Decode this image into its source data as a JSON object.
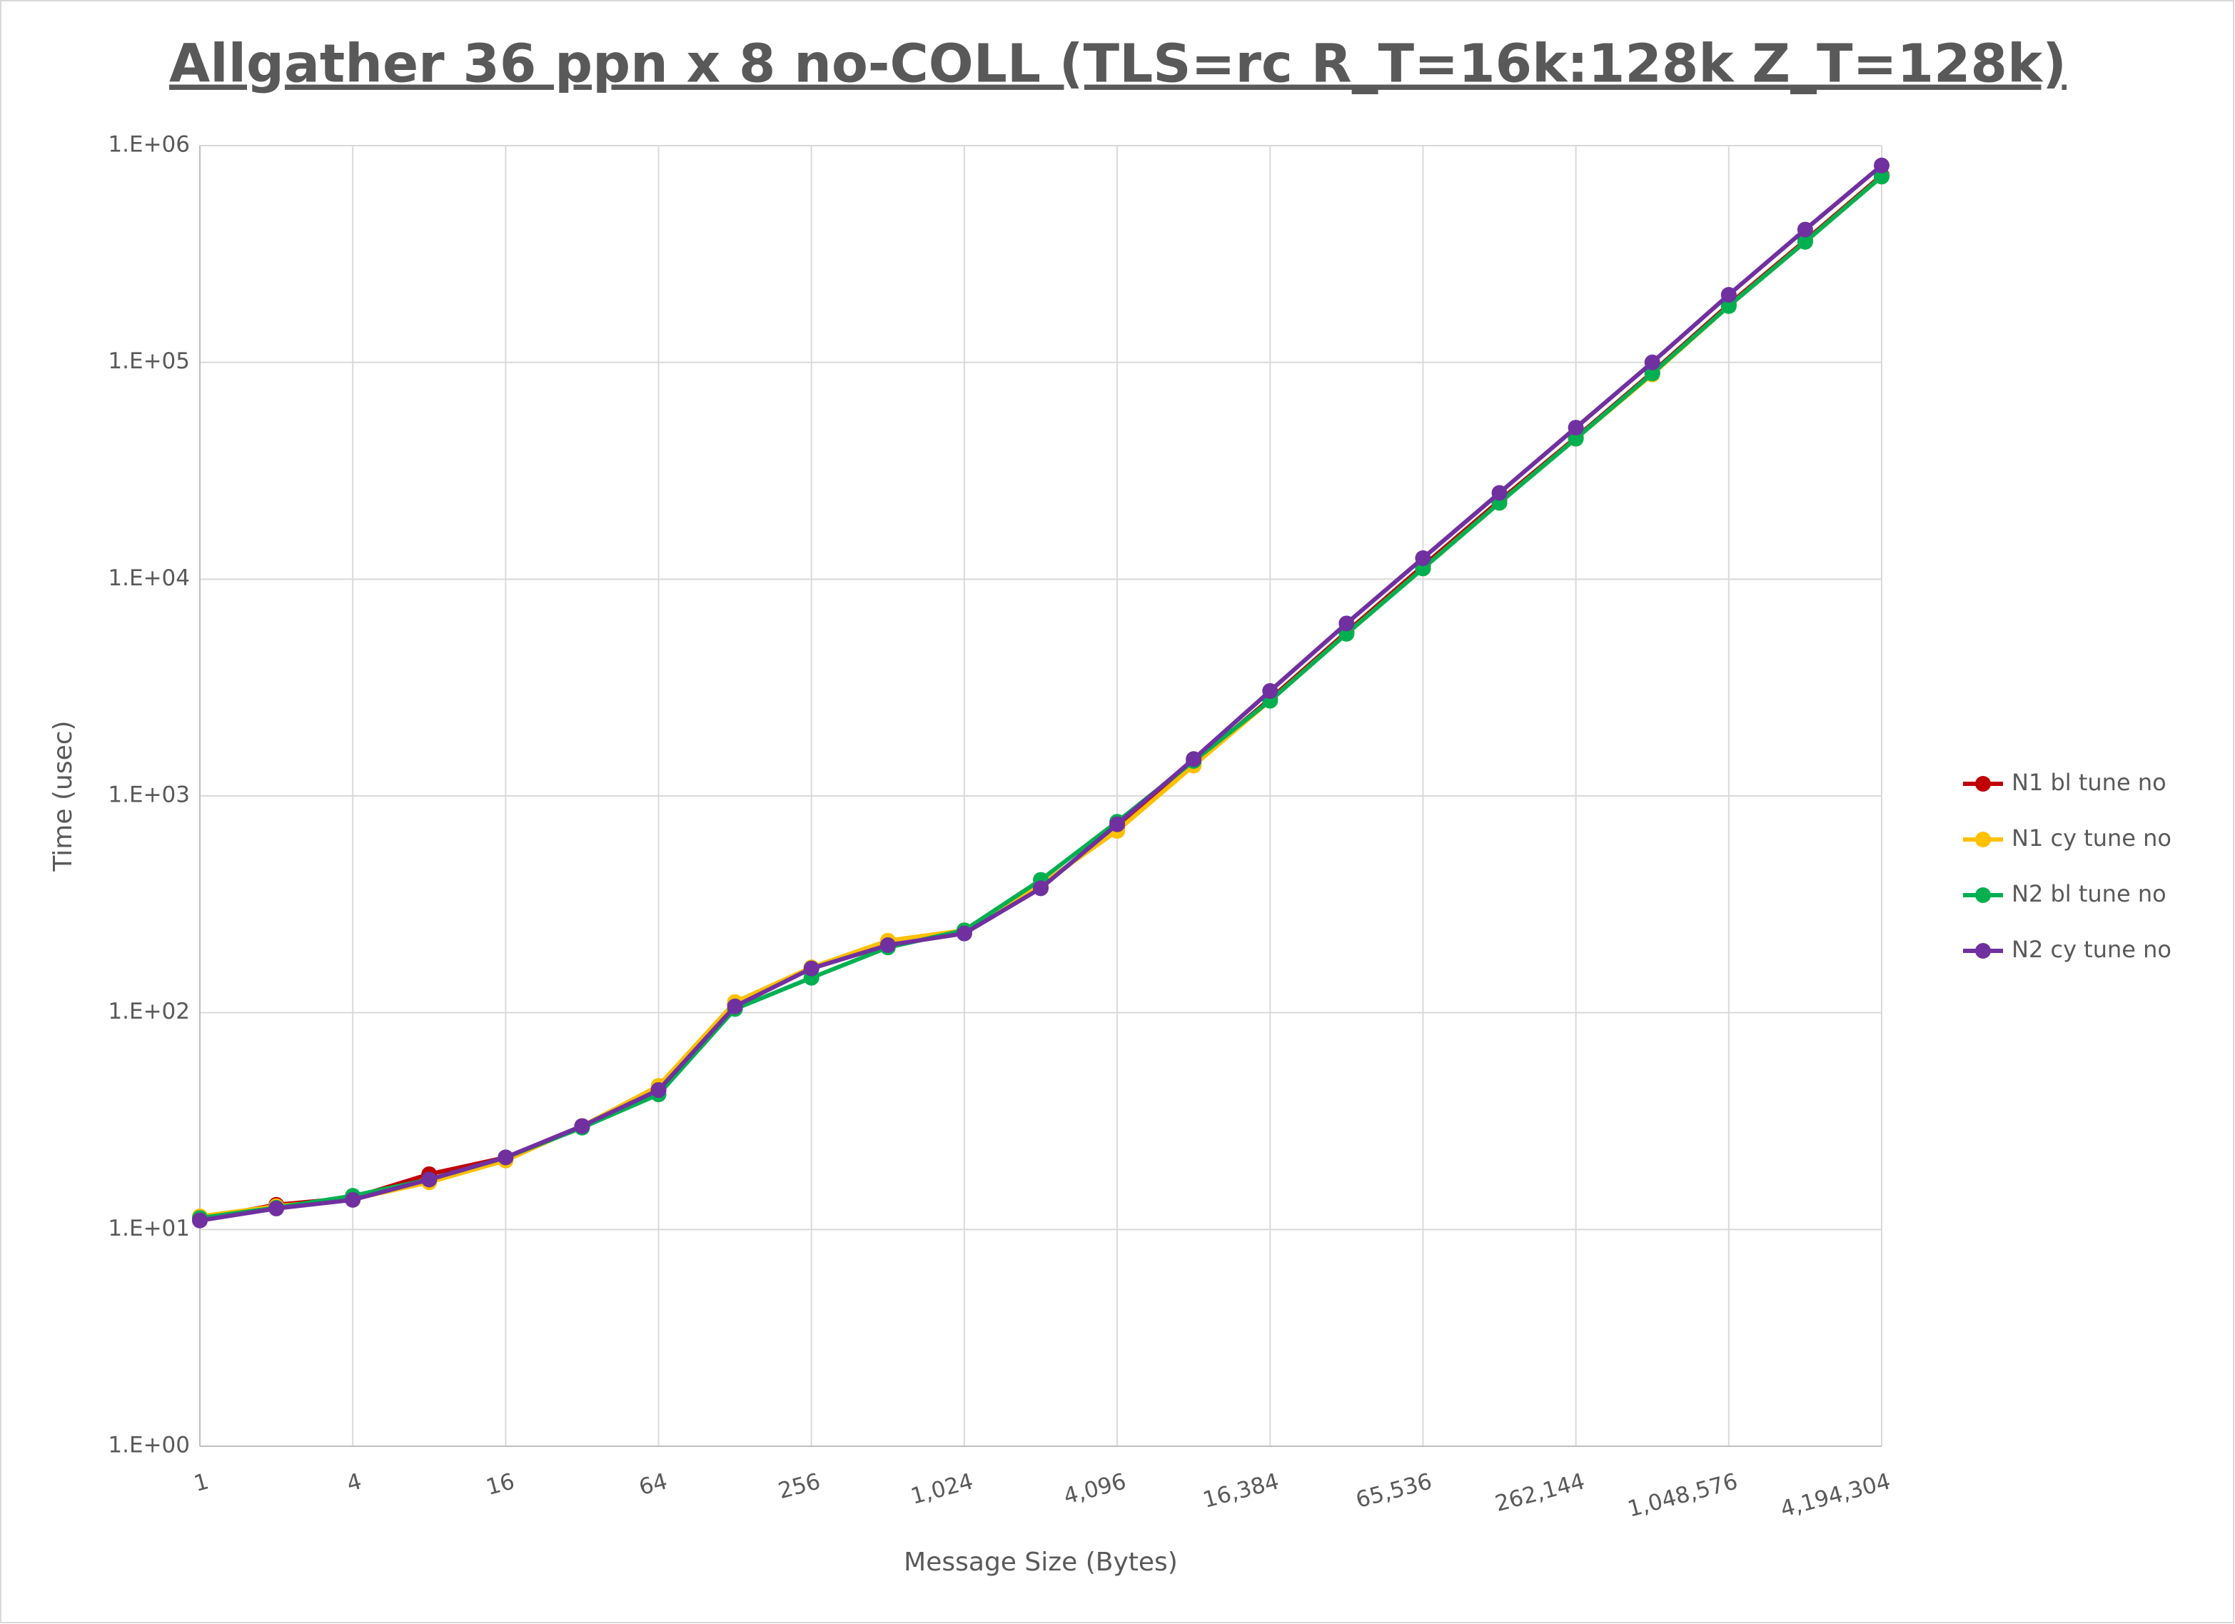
{
  "chart_data": {
    "type": "line",
    "title": "Allgather 36 ppn x 8 no-COLL (TLS=rc R_T=16k:128k Z_T=128k)",
    "x_label": "Message Size (Bytes)",
    "y_label": "Time (usec)",
    "x": [
      1,
      2,
      4,
      8,
      16,
      32,
      64,
      128,
      256,
      512,
      1024,
      2048,
      4096,
      8192,
      16384,
      32768,
      65536,
      131072,
      262144,
      524288,
      1048576,
      2097152,
      4194304
    ],
    "xlog": true,
    "ylog": true,
    "grid": true,
    "legend": "right",
    "xlim": [
      1,
      4194304
    ],
    "xticks": [
      1,
      4,
      16,
      64,
      256,
      {
        "value": 1024,
        "label": "1,024"
      },
      {
        "value": 4096,
        "label": "4,096"
      },
      {
        "value": 16384,
        "label": "16,384"
      },
      {
        "value": 65536,
        "label": "65,536"
      },
      {
        "value": 262144,
        "label": "262,144"
      },
      {
        "value": 1048576,
        "label": "1,048,576"
      },
      {
        "value": 4194304,
        "label": "4,194,304"
      }
    ],
    "ylim": [
      1,
      1000000
    ],
    "yticks": [
      {
        "value": 1,
        "label": "1.E+00"
      },
      {
        "value": 10,
        "label": "1.E+01"
      },
      {
        "value": 100,
        "label": "1.E+02"
      },
      {
        "value": 1000,
        "label": "1.E+03"
      },
      {
        "value": 10000,
        "label": "1.E+04"
      },
      {
        "value": 100000,
        "label": "1.E+05"
      },
      {
        "value": 1000000,
        "label": "1.E+06"
      }
    ],
    "series": [
      {
        "name": "N1 bl tune no",
        "color": "#c00000",
        "values": [
          11.2,
          13,
          14,
          18,
          21.5,
          30,
          44,
          110,
          160,
          205,
          235,
          380,
          720,
          1420,
          2800,
          5700,
          11500,
          23000,
          45000,
          90000,
          185000,
          365000,
          730000
        ]
      },
      {
        "name": "N1 cy tune no",
        "color": "#ffc000",
        "values": [
          11.5,
          12.8,
          13.8,
          16.5,
          20.8,
          30,
          46,
          112,
          162,
          215,
          240,
          390,
          690,
          1380,
          2750,
          5600,
          11200,
          22500,
          44500,
          88000,
          182000,
          360000,
          720000
        ]
      },
      {
        "name": "N2 bl tune no",
        "color": "#00b050",
        "values": [
          11.3,
          12.6,
          14.3,
          17,
          21.5,
          29.5,
          42,
          104,
          145,
          200,
          240,
          410,
          760,
          1450,
          2750,
          5600,
          11200,
          22500,
          44500,
          89000,
          182000,
          360000,
          720000
        ]
      },
      {
        "name": "N2 cy tune no",
        "color": "#7030a0",
        "values": [
          11,
          12.5,
          13.7,
          17,
          21.5,
          30,
          44,
          107,
          160,
          205,
          232,
          375,
          740,
          1480,
          3050,
          6250,
          12500,
          25000,
          50000,
          100000,
          205000,
          410000,
          810000
        ]
      }
    ]
  }
}
